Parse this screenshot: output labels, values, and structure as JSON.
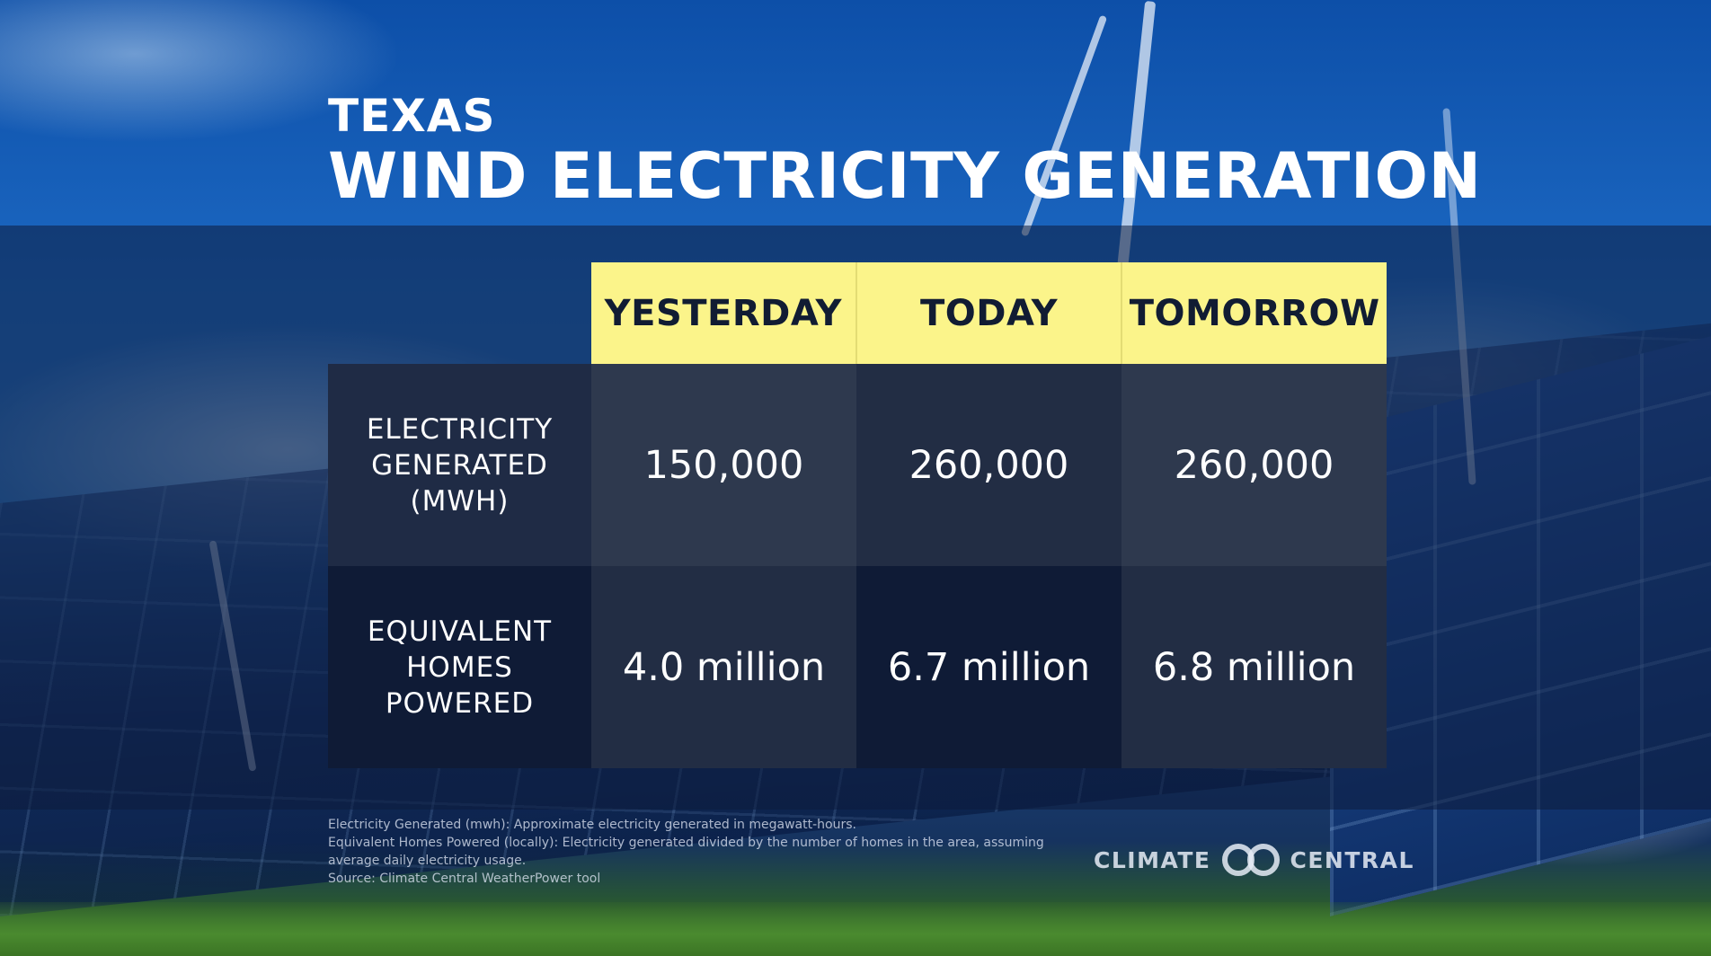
{
  "header": {
    "subtitle": "TEXAS",
    "title": "WIND ELECTRICITY GENERATION"
  },
  "table": {
    "columns": [
      "YESTERDAY",
      "TODAY",
      "TOMORROW"
    ],
    "rows": [
      {
        "label": "ELECTRICITY\nGENERATED\n(MWH)",
        "values": [
          "150,000",
          "260,000",
          "260,000"
        ]
      },
      {
        "label": "EQUIVALENT\nHOMES\nPOWERED",
        "values": [
          "4.0 million",
          "6.7 million",
          "6.8 million"
        ]
      }
    ]
  },
  "footnotes": [
    "Electricity Generated (mwh): Approximate electricity generated in megawatt-hours.",
    "Equivalent Homes Powered (locally): Electricity generated divided by the number of homes in the area, assuming average daily electricity usage.",
    "Source: Climate Central WeatherPower tool"
  ],
  "logo": {
    "left": "CLIMATE",
    "right": "CENTRAL",
    "icon": "interlocking-circles-icon"
  },
  "colors": {
    "header_cell": "#fbf48a",
    "header_text": "#111c33",
    "cell_light": "#2e394e",
    "cell_mid": "#222d44",
    "cell_dark": "#0f1b36"
  }
}
